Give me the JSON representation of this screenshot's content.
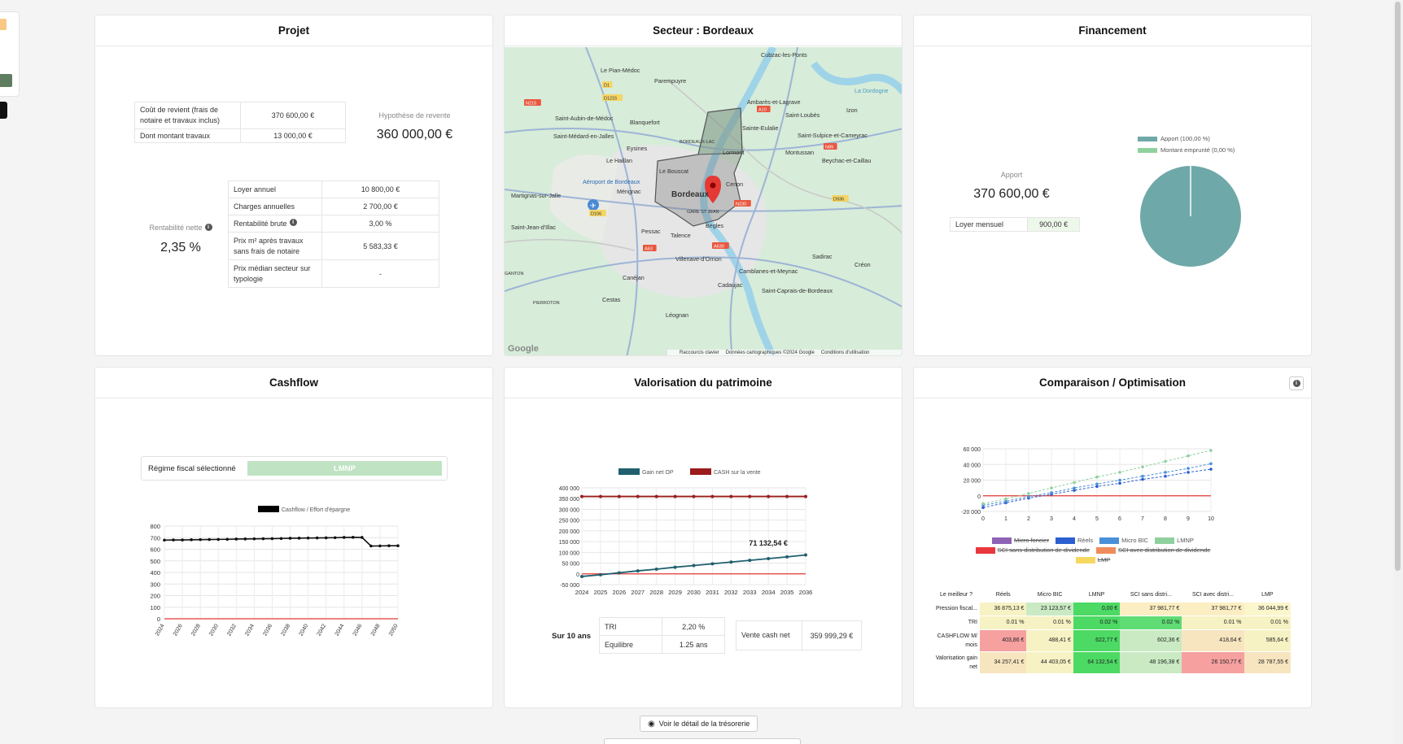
{
  "projet": {
    "title": "Projet",
    "cout_label": "Coût de revient (frais de notaire et travaux inclus)",
    "cout_value": "370 600,00 €",
    "travaux_label": "Dont montant travaux",
    "travaux_value": "13 000,00 €",
    "hypothese_label": "Hypothèse de revente",
    "hypothese_value": "360 000,00 €",
    "rentabilite_label": "Rentabilité nette",
    "rentabilite_value": "2,35 %",
    "rows": [
      {
        "label": "Loyer annuel",
        "value": "10 800,00 €"
      },
      {
        "label": "Charges annuelles",
        "value": "2 700,00 €"
      },
      {
        "label": "Rentabilité brute",
        "value": "3,00 %"
      },
      {
        "label": "Prix m² après travaux sans frais de notaire",
        "value": "5 583,33 €"
      },
      {
        "label": "Prix médian secteur sur typologie",
        "value": "-"
      }
    ]
  },
  "secteur": {
    "title": "Secteur : Bordeaux",
    "places": [
      "Cubzac-les-Ponts",
      "Le Pian-Médoc",
      "Parempuyre",
      "Ambarès-et-Lagrave",
      "Saint-Loubès",
      "Saint-Aubin-de-Médoc",
      "Blanquefort",
      "Sainte-Eulalie",
      "Saint-Sulpice-et-Cameyrac",
      "Saint-Médard-en-Jalles",
      "Eysines",
      "Lormont",
      "Montussan",
      "Beychac-et-Caillau",
      "Le Haillan",
      "Le Bouscat",
      "Aéroport de Bordeaux",
      "Mérignac",
      "Bordeaux",
      "Cenon",
      "Martignas-sur-Jalle",
      "Saint-Jean-d'Illac",
      "Pessac",
      "Talence",
      "Bègles",
      "Villenave-d'Ornon",
      "Sadirac",
      "Canéjan",
      "Camblanes-et-Meynac",
      "Cadaujac",
      "Cestas",
      "Saint-Caprais-de-Bordeaux",
      "Léognan",
      "Izon",
      "Créon",
      "Bordeaux-Lac",
      "Gare St Jean",
      "Pierroton",
      "Ganton",
      "La Dordogne"
    ],
    "roads": [
      "D1215",
      "N215",
      "D1",
      "A10",
      "N89",
      "D106",
      "N230",
      "D936",
      "A63",
      "A630"
    ],
    "footer": [
      "Raccourcis clavier",
      "Données cartographiques ©2024 Google",
      "Conditions d'utilisation"
    ],
    "google": "Google"
  },
  "financement": {
    "title": "Financement",
    "apport_label": "Apport",
    "apport_value": "370 600,00 €",
    "loyer_label": "Loyer mensuel",
    "loyer_value": "900,00 €",
    "legend": [
      {
        "label": "Apport (100,00 %)",
        "color": "#6fa8a8"
      },
      {
        "label": "Montant emprunté (0,00 %)",
        "color": "#8fd19e"
      }
    ],
    "pie": [
      100,
      0
    ]
  },
  "cashflow": {
    "title": "Cashflow",
    "regime_label": "Régime fiscal sélectionné",
    "regime_value": "LMNP",
    "legend": "Cashflow / Effort d'épargne",
    "chart_data": {
      "type": "line",
      "x": [
        "2024",
        "2025",
        "2026",
        "2027",
        "2028",
        "2029",
        "2030",
        "2031",
        "2032",
        "2033",
        "2034",
        "2035",
        "2036",
        "2037",
        "2038",
        "2039",
        "2040",
        "2041",
        "2042",
        "2043",
        "2044",
        "2045",
        "2046",
        "2047",
        "2048",
        "2049",
        "2050"
      ],
      "values": [
        679,
        680,
        680,
        682,
        683,
        684,
        685,
        686,
        688,
        689,
        690,
        691,
        692,
        693,
        695,
        696,
        697,
        698,
        699,
        700,
        702,
        703,
        702,
        628,
        629,
        630,
        630
      ],
      "ylim": [
        0,
        800
      ],
      "yticks": [
        0,
        100,
        200,
        300,
        400,
        500,
        600,
        700,
        800
      ],
      "xticks": [
        "2024",
        "2026",
        "2028",
        "2030",
        "2032",
        "2034",
        "2036",
        "2038",
        "2040",
        "2042",
        "2044",
        "2046",
        "2048",
        "2050"
      ]
    }
  },
  "valorisation": {
    "title": "Valorisation du patrimoine",
    "annotation": "71 132,54 €",
    "sur": "Sur 10 ans",
    "tri_label": "TRI",
    "tri_value": "2,20 %",
    "eq_label": "Equilibre",
    "eq_value": "1.25 ans",
    "vente_label": "Vente cash net",
    "vente_value": "359 999,29 €",
    "chart_data": {
      "type": "line",
      "x": [
        "2024",
        "2025",
        "2026",
        "2027",
        "2028",
        "2029",
        "2030",
        "2031",
        "2032",
        "2033",
        "2034",
        "2035",
        "2036"
      ],
      "series": [
        {
          "name": "Gain net OP",
          "color": "#1f5f6e",
          "values": [
            -12000,
            -4000,
            5000,
            14000,
            22000,
            31000,
            39000,
            47000,
            55000,
            63000,
            71132.54,
            79000,
            88000
          ]
        },
        {
          "name": "CASH sur la vente",
          "color": "#9b1b1b",
          "values": [
            360000,
            360000,
            360000,
            360000,
            360000,
            360000,
            360000,
            360000,
            360000,
            360000,
            360000,
            360000,
            360000
          ]
        }
      ],
      "ylim": [
        -50000,
        400000
      ],
      "yticks": [
        "-50 000",
        "0",
        "50 000",
        "100 000",
        "150 000",
        "200 000",
        "250 000",
        "300 000",
        "350 000",
        "400 000"
      ]
    }
  },
  "comparaison": {
    "title": "Comparaison / Optimisation",
    "legend": [
      {
        "label": "Micro foncier",
        "color": "#8e63b5",
        "strike": true
      },
      {
        "label": "Réels",
        "color": "#2c5fd0",
        "strike": false
      },
      {
        "label": "Micro BIC",
        "color": "#4a90d9",
        "strike": false
      },
      {
        "label": "LMNP",
        "color": "#8fd19e",
        "strike": false
      },
      {
        "label": "SCI sans distribution de dividende",
        "color": "#e8383d",
        "strike": true
      },
      {
        "label": "SCI avec distribution de dividende",
        "color": "#f08c5a",
        "strike": true
      },
      {
        "label": "LMP",
        "color": "#f6d860",
        "strike": true
      }
    ],
    "chart_data": {
      "type": "line",
      "x": [
        0,
        1,
        2,
        3,
        4,
        5,
        6,
        7,
        8,
        9,
        10
      ],
      "series": [
        {
          "name": "Réels",
          "color": "#2c5fd0",
          "values": [
            -15000,
            -9000,
            -3000,
            2000,
            7000,
            12000,
            16000,
            21000,
            25000,
            30000,
            34000
          ]
        },
        {
          "name": "Micro BIC",
          "color": "#4a90d9",
          "values": [
            -12000,
            -7000,
            -1000,
            4000,
            10000,
            15000,
            20000,
            25000,
            30000,
            35000,
            41000
          ]
        },
        {
          "name": "LMNP",
          "color": "#8fd19e",
          "values": [
            -10000,
            -4000,
            3000,
            10000,
            17000,
            24000,
            30000,
            37000,
            44000,
            51000,
            58000
          ]
        }
      ],
      "ylim": [
        -20000,
        60000
      ],
      "yticks": [
        "-20 000",
        "0",
        "20 000",
        "40 000",
        "60 000"
      ]
    },
    "table": {
      "headers": [
        "Le meilleur ?",
        "Réels",
        "Micro BIC",
        "LMNP",
        "SCI sans distri...",
        "SCI avec distri...",
        "LMP"
      ],
      "rows": [
        {
          "label": "Pression fiscal...",
          "cells": [
            "36 875,13 €",
            "23 123,57 €",
            "0,00 €",
            "37 981,77 €",
            "37 981,77 €",
            "36 044,99 €"
          ],
          "colors": [
            "#f7f2c4",
            "#c9eac3",
            "#4cd964",
            "#fbeec2",
            "#fbeec2",
            "#fbf6cc"
          ]
        },
        {
          "label": "TRI",
          "cells": [
            "0.01 %",
            "0.01 %",
            "0.02 %",
            "0.02 %",
            "0.01 %",
            "0.01 %"
          ],
          "colors": [
            "#f7f2c4",
            "#f7f2c4",
            "#4cd964",
            "#5fdc74",
            "#f7f2c4",
            "#f7f2c4"
          ]
        },
        {
          "label": "CASHFLOW M/ mois",
          "cells": [
            "403,86 €",
            "488,41 €",
            "622,77 €",
            "602,36 €",
            "418,64 €",
            "585,64 €"
          ],
          "colors": [
            "#f6a0a0",
            "#f7f2c4",
            "#4cd964",
            "#c9eac3",
            "#f7e5c0",
            "#f7f2c4"
          ]
        },
        {
          "label": "Valorisation gain net",
          "cells": [
            "34 257,41 €",
            "44 403,05 €",
            "64 132,54 €",
            "48 196,38 €",
            "26 150,77 €",
            "28 787,55 €"
          ],
          "colors": [
            "#f7e5c0",
            "#f7f2c4",
            "#4cd964",
            "#c9eac3",
            "#f6a0a0",
            "#f7e5c0"
          ]
        }
      ]
    }
  },
  "actions": {
    "tresorerie": "Voir le détail de la trésorerie"
  }
}
